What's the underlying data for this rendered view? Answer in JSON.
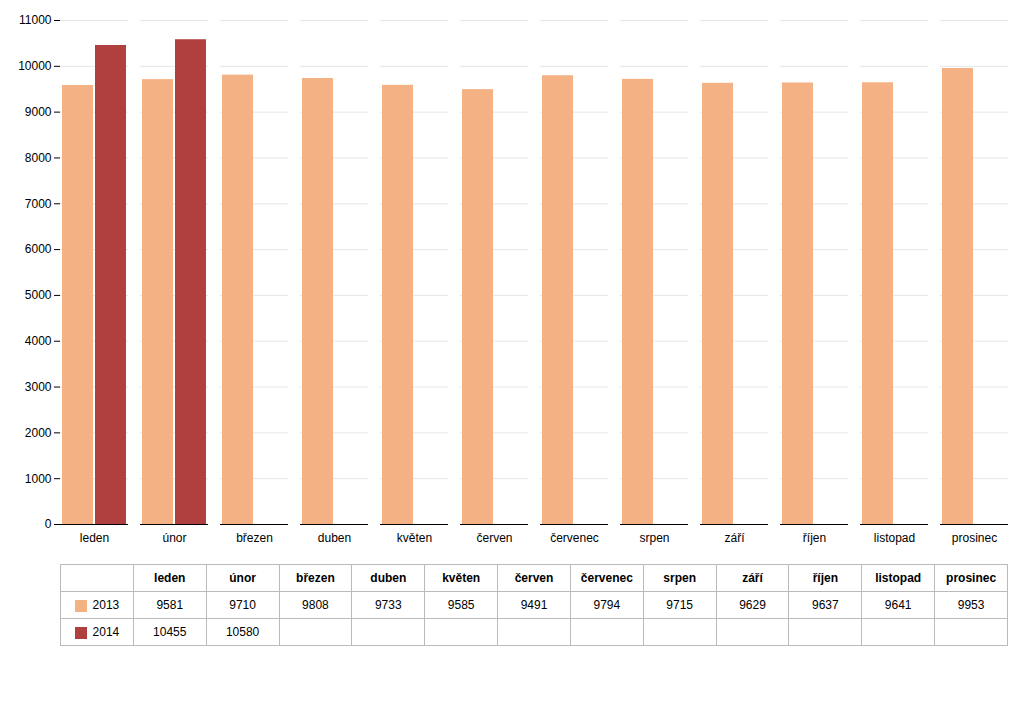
{
  "chart_data": {
    "type": "bar",
    "categories": [
      "leden",
      "únor",
      "březen",
      "duben",
      "květen",
      "červen",
      "červenec",
      "srpen",
      "září",
      "říjen",
      "listopad",
      "prosinec"
    ],
    "series": [
      {
        "name": "2013",
        "color": "#F4B183",
        "values": [
          9581,
          9710,
          9808,
          9733,
          9585,
          9491,
          9794,
          9715,
          9629,
          9637,
          9641,
          9953
        ]
      },
      {
        "name": "2014",
        "color": "#B04040",
        "values": [
          10455,
          10580,
          null,
          null,
          null,
          null,
          null,
          null,
          null,
          null,
          null,
          null
        ]
      }
    ],
    "ylim": [
      0,
      11000
    ],
    "yticks": [
      0,
      1000,
      2000,
      3000,
      4000,
      5000,
      6000,
      7000,
      8000,
      9000,
      10000,
      11000
    ],
    "grid": true,
    "legend": "bottom"
  }
}
